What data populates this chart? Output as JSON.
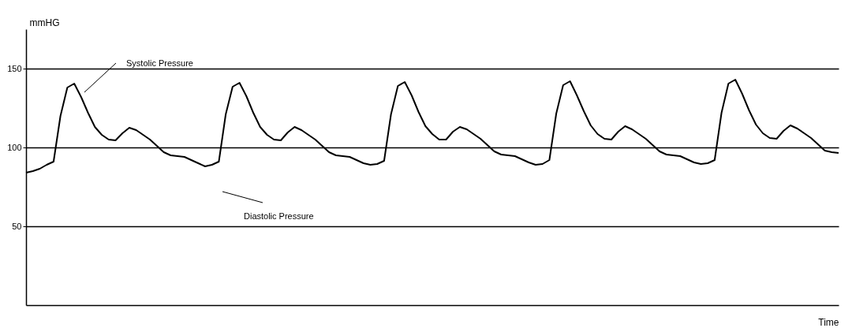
{
  "chart_data": {
    "type": "line",
    "ylabel": "mmHG",
    "xlabel": "Time",
    "categories": [
      null,
      null,
      null,
      null,
      null,
      null,
      null,
      null,
      null,
      null,
      null,
      null,
      null,
      null,
      null,
      null,
      null,
      null,
      null,
      null,
      null,
      null,
      null,
      null,
      null,
      null,
      null,
      null,
      null,
      null,
      null,
      null,
      null,
      null,
      null,
      null,
      null,
      null,
      null,
      null,
      null,
      null,
      null,
      null,
      null,
      null,
      null,
      null,
      null,
      null,
      null,
      null,
      null,
      null,
      null,
      null,
      null,
      null,
      null,
      null,
      null,
      null,
      null,
      null,
      null,
      null,
      null,
      null,
      null,
      null,
      null,
      null,
      null,
      null,
      null,
      null,
      null,
      null,
      null,
      null,
      null,
      null,
      null,
      null,
      null,
      null,
      null,
      null,
      null,
      null,
      null,
      null,
      null,
      null,
      null,
      null,
      null,
      null,
      null,
      null,
      null,
      null,
      null,
      null,
      null,
      null,
      null,
      null,
      null,
      null,
      null,
      null,
      null,
      null,
      null,
      null,
      null,
      null,
      null
    ],
    "series": [
      {
        "color": "#000000",
        "values": [
          84,
          85,
          86.5,
          89,
          91,
          120,
          138,
          140.5,
          132,
          122,
          113,
          108,
          105,
          104.5,
          109,
          112.5,
          111,
          108,
          105,
          101,
          97,
          95,
          94.5,
          94,
          92,
          90,
          88,
          89,
          91,
          121,
          138.5,
          141,
          132.5,
          122,
          113,
          108,
          105,
          104.5,
          109.5,
          113,
          111,
          108,
          105,
          101,
          97,
          95,
          94.5,
          94,
          92,
          90,
          89,
          89.5,
          91.5,
          121,
          139,
          141.5,
          133,
          122.5,
          113.5,
          108.5,
          105,
          105,
          110,
          113,
          111.5,
          108.5,
          105.5,
          101.5,
          97.5,
          95.5,
          95,
          94.5,
          92.5,
          90.5,
          89,
          89.5,
          92,
          121.5,
          139.5,
          142,
          133,
          123,
          114,
          108.5,
          105.5,
          105,
          110,
          113.5,
          111.5,
          108.5,
          105.5,
          101.5,
          97.5,
          95.5,
          95,
          94.5,
          92.5,
          90.5,
          89.5,
          90,
          92,
          122,
          140.5,
          143,
          134,
          123.5,
          114.5,
          109,
          106,
          105.5,
          110.5,
          114,
          112,
          109,
          106,
          102,
          98,
          97,
          96.5
        ]
      }
    ],
    "ylim": [
      0,
      175
    ],
    "yticks": [
      50,
      100,
      150
    ],
    "grid": "y",
    "tick_labels": "y",
    "marker": "none",
    "line_style": "solid",
    "annotations": [
      "Systolic Pressure",
      "Diastolic Pressure"
    ]
  }
}
